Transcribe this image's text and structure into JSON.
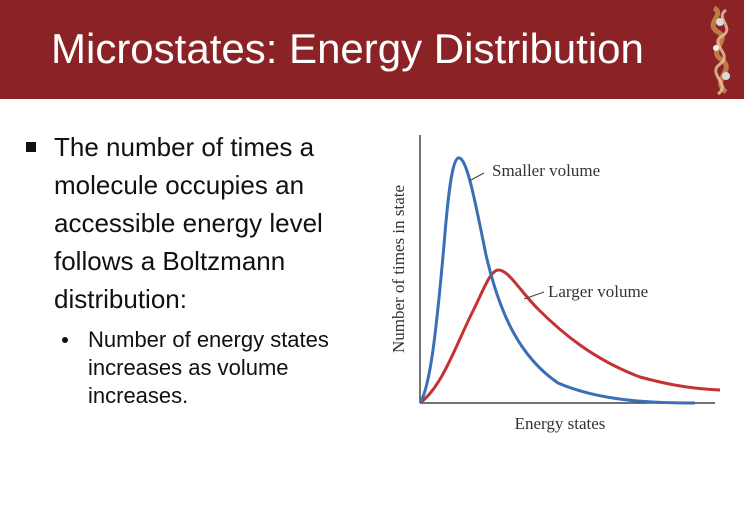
{
  "slide": {
    "title": "Microstates: Energy Distribution",
    "bullet_main": "The number of times a molecule occupies an accessible energy level follows a Boltzmann distribution:",
    "bullet_sub": "Number of energy states increases as volume increases."
  },
  "colors": {
    "title_bar": "#8b2326",
    "smaller_volume_curve": "#3b6fb5",
    "larger_volume_curve": "#c43232"
  },
  "chart_data": {
    "type": "line",
    "xlabel": "Energy states",
    "ylabel": "Number of times in state",
    "series": [
      {
        "name": "Smaller volume",
        "color": "#3b6fb5"
      },
      {
        "name": "Larger volume",
        "color": "#c43232"
      }
    ],
    "grid": false
  }
}
